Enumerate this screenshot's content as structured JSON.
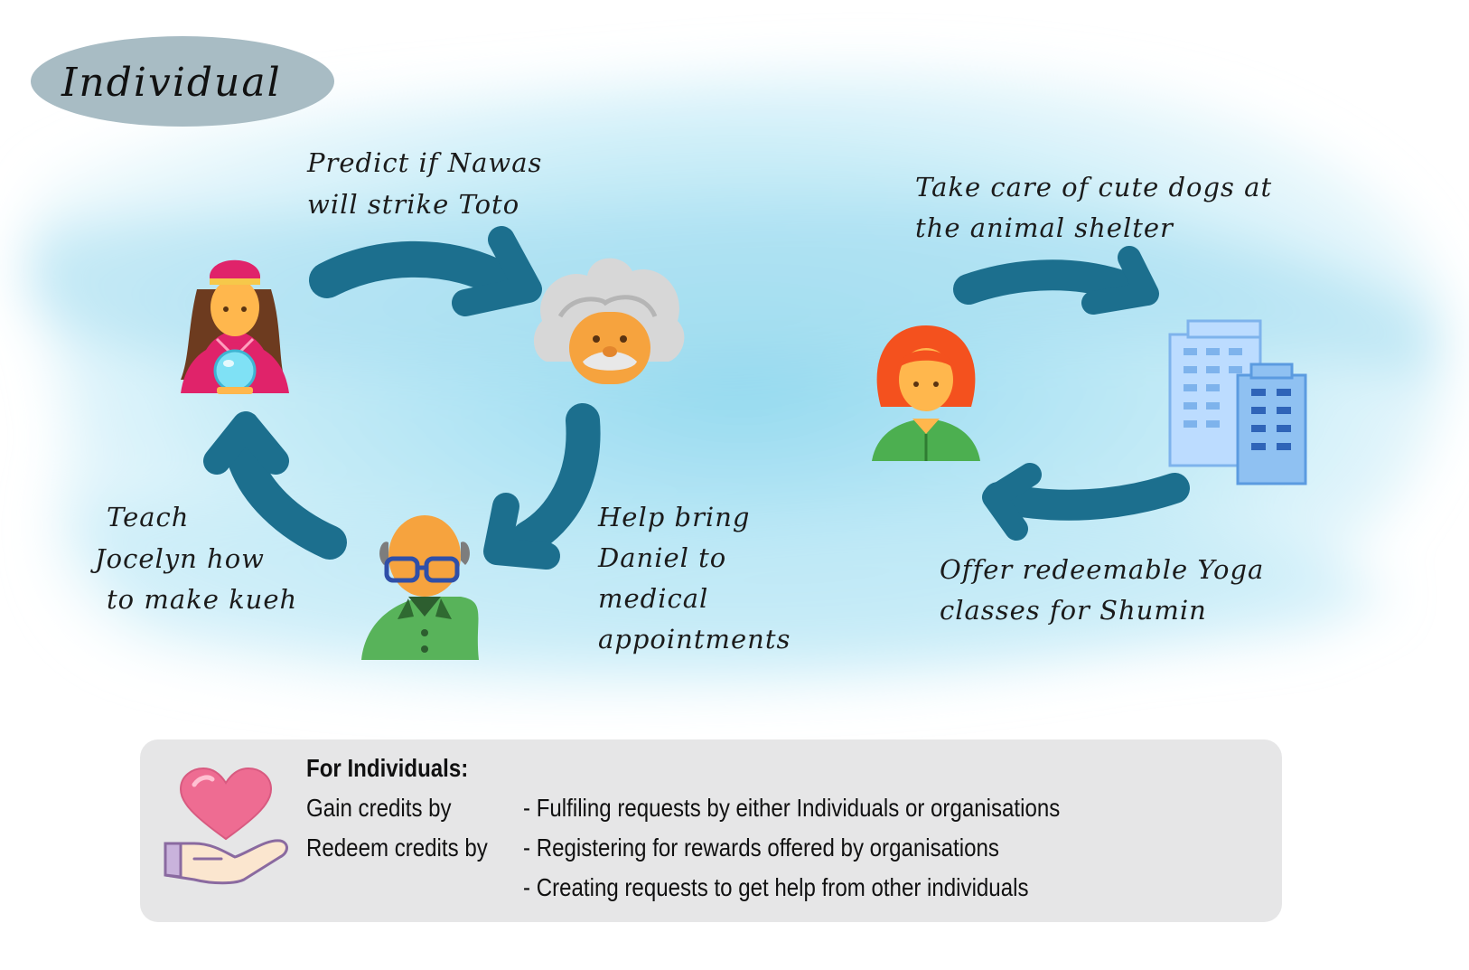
{
  "title": "Individual",
  "labels": {
    "predict": [
      "Predict if Nawas",
      "will strike Toto"
    ],
    "dogs": [
      "Take care of cute dogs at",
      "the animal shelter"
    ],
    "teach": [
      "Teach",
      "Jocelyn how",
      "to make kueh"
    ],
    "help": [
      "Help bring",
      "Daniel to",
      "medical",
      "appointments"
    ],
    "yoga": [
      "Offer redeemable Yoga",
      "classes for Shumin"
    ]
  },
  "info": {
    "heading": "For Individuals:",
    "gain_label": "Gain credits by",
    "redeem_label": "Redeem credits by",
    "gain_items": [
      "- Fulfiling requests by either Individuals or organisations"
    ],
    "redeem_items": [
      "- Registering for rewards offered by organisations",
      "- Creating requests to get help from other individuals"
    ]
  },
  "icons": {
    "fortune_teller": "fortune-teller-icon",
    "einstein": "scientist-icon",
    "grandpa": "grandfather-icon",
    "woman": "woman-icon",
    "buildings": "organisation-buildings-icon",
    "heart_hand": "heart-in-hand-icon"
  },
  "colors": {
    "arrow": "#1c6f8e",
    "wash": "#b9e6f4",
    "title_pill": "#a8bcc4",
    "info_bg": "#e6e6e7"
  }
}
